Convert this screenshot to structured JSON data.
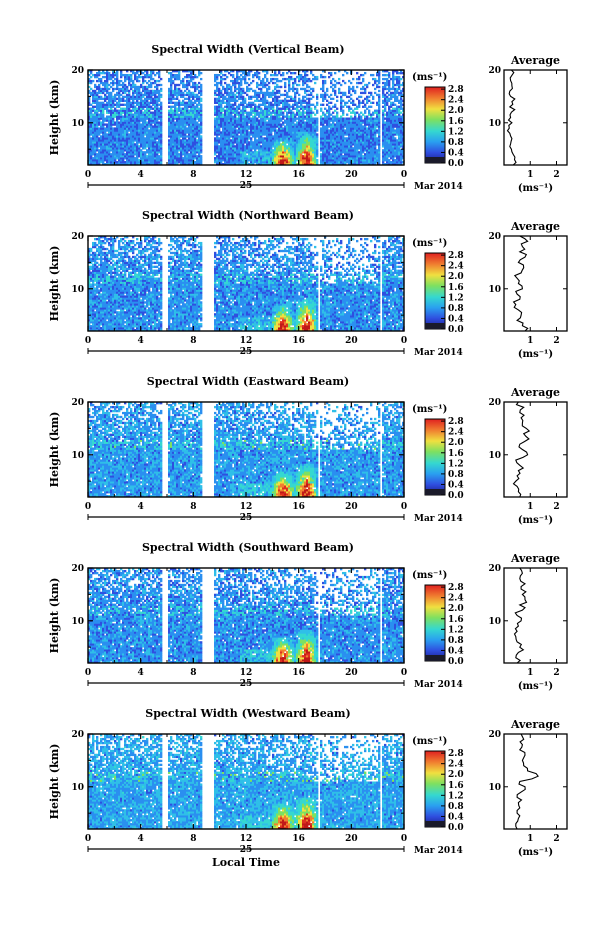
{
  "chart_data": [
    {
      "type": "heatmap",
      "title": "Spectral Width (Vertical Beam)",
      "ylabel": "Height (km)",
      "yticks": [
        "10",
        "20"
      ],
      "ylim": [
        2,
        20
      ],
      "xticks": [
        "0",
        "4",
        "8",
        "12",
        "16",
        "20",
        "0"
      ],
      "xlim": [
        0,
        24
      ],
      "day_label": "25",
      "month_label": "Mar 2014",
      "colorbar": {
        "unit": "(ms⁻¹)",
        "ticks": [
          "0.0",
          "0.4",
          "0.8",
          "1.2",
          "1.6",
          "2.0",
          "2.4",
          "2.8"
        ]
      },
      "gaps": [
        [
          5.6,
          6.0
        ],
        [
          8.6,
          9.6
        ],
        [
          17.4,
          17.6
        ],
        [
          22.2,
          22.4
        ]
      ],
      "peaks": [
        [
          14.8,
          7.2
        ],
        [
          16.6,
          8.5
        ]
      ],
      "profile": {
        "title": "Average",
        "xlabel": "(ms⁻¹)",
        "xticks": [
          "1",
          "2"
        ],
        "xlim": [
          0,
          2.4
        ],
        "ylim": [
          2,
          20
        ],
        "yticks": [
          "10",
          "20"
        ],
        "heights": [
          2,
          3,
          4,
          5,
          6,
          7,
          8,
          9,
          10,
          11,
          12,
          13,
          14,
          15,
          16,
          17,
          18,
          19,
          20
        ],
        "values": [
          0.35,
          0.4,
          0.35,
          0.28,
          0.25,
          0.3,
          0.22,
          0.2,
          0.3,
          0.25,
          0.28,
          0.22,
          0.3,
          0.25,
          0.22,
          0.3,
          0.25,
          0.3,
          0.28
        ]
      },
      "base_level": 0.55
    },
    {
      "type": "heatmap",
      "title": "Spectral Width (Northward Beam)",
      "ylabel": "Height (km)",
      "yticks": [
        "10",
        "20"
      ],
      "ylim": [
        2,
        20
      ],
      "xticks": [
        "0",
        "4",
        "8",
        "12",
        "16",
        "20",
        "0"
      ],
      "xlim": [
        0,
        24
      ],
      "day_label": "25",
      "month_label": "Mar 2014",
      "colorbar": {
        "unit": "(ms⁻¹)",
        "ticks": [
          "0.0",
          "0.4",
          "0.8",
          "1.2",
          "1.6",
          "2.0",
          "2.4",
          "2.8"
        ]
      },
      "gaps": [
        [
          5.6,
          6.0
        ],
        [
          8.6,
          9.6
        ],
        [
          17.4,
          17.6
        ],
        [
          22.2,
          22.4
        ]
      ],
      "peaks": [
        [
          14.8,
          7.2
        ],
        [
          16.6,
          8.5
        ]
      ],
      "profile": {
        "title": "Average",
        "xlabel": "(ms⁻¹)",
        "xticks": [
          "1",
          "2"
        ],
        "xlim": [
          0,
          2.4
        ],
        "ylim": [
          2,
          20
        ],
        "yticks": [
          "10",
          "20"
        ],
        "heights": [
          2,
          3,
          4,
          5,
          6,
          7,
          8,
          9,
          10,
          11,
          12,
          13,
          14,
          15,
          16,
          17,
          18,
          19,
          20
        ],
        "values": [
          0.8,
          0.7,
          0.5,
          0.65,
          0.55,
          0.45,
          0.6,
          0.5,
          0.7,
          0.55,
          0.5,
          0.65,
          0.75,
          0.55,
          0.8,
          0.6,
          0.7,
          0.9,
          0.6
        ]
      },
      "base_level": 0.6
    },
    {
      "type": "heatmap",
      "title": "Spectral Width (Eastward Beam)",
      "ylabel": "Height (km)",
      "yticks": [
        "10",
        "20"
      ],
      "ylim": [
        2,
        20
      ],
      "xticks": [
        "0",
        "4",
        "8",
        "12",
        "16",
        "20",
        "0"
      ],
      "xlim": [
        0,
        24
      ],
      "day_label": "25",
      "month_label": "Mar 2014",
      "colorbar": {
        "unit": "(ms⁻¹)",
        "ticks": [
          "0.0",
          "0.4",
          "0.8",
          "1.2",
          "1.6",
          "2.0",
          "2.4",
          "2.8"
        ]
      },
      "gaps": [
        [
          5.6,
          6.0
        ],
        [
          8.6,
          9.6
        ],
        [
          17.4,
          17.6
        ],
        [
          22.2,
          22.4
        ]
      ],
      "peaks": [
        [
          14.8,
          7.2
        ],
        [
          16.6,
          8.5
        ]
      ],
      "profile": {
        "title": "Average",
        "xlabel": "(ms⁻¹)",
        "xticks": [
          "1",
          "2"
        ],
        "xlim": [
          0,
          2.4
        ],
        "ylim": [
          2,
          20
        ],
        "yticks": [
          "10",
          "20"
        ],
        "heights": [
          2,
          3,
          4,
          5,
          6,
          7,
          8,
          9,
          10,
          11,
          12,
          13,
          14,
          15,
          16,
          17,
          18,
          19,
          20
        ],
        "values": [
          0.6,
          0.55,
          0.5,
          0.45,
          0.5,
          0.55,
          0.6,
          0.45,
          0.9,
          0.7,
          0.6,
          0.95,
          0.75,
          0.85,
          0.7,
          0.65,
          0.6,
          0.75,
          0.55
        ]
      },
      "base_level": 0.65
    },
    {
      "type": "heatmap",
      "title": "Spectral Width (Southward Beam)",
      "ylabel": "Height (km)",
      "yticks": [
        "10",
        "20"
      ],
      "ylim": [
        2,
        20
      ],
      "xticks": [
        "0",
        "4",
        "8",
        "12",
        "16",
        "20",
        "0"
      ],
      "xlim": [
        0,
        24
      ],
      "day_label": "25",
      "month_label": "Mar 2014",
      "colorbar": {
        "unit": "(ms⁻¹)",
        "ticks": [
          "0.0",
          "0.4",
          "0.8",
          "1.2",
          "1.6",
          "2.0",
          "2.4",
          "2.8"
        ]
      },
      "gaps": [
        [
          5.6,
          6.0
        ],
        [
          8.6,
          9.6
        ],
        [
          17.4,
          17.6
        ],
        [
          22.2,
          22.4
        ]
      ],
      "peaks": [
        [
          14.8,
          7.2
        ],
        [
          16.6,
          8.5
        ]
      ],
      "profile": {
        "title": "Average",
        "xlabel": "(ms⁻¹)",
        "xticks": [
          "1",
          "2"
        ],
        "xlim": [
          0,
          2.4
        ],
        "ylim": [
          2,
          20
        ],
        "yticks": [
          "10",
          "20"
        ],
        "heights": [
          2,
          3,
          4,
          5,
          6,
          7,
          8,
          9,
          10,
          11,
          12,
          13,
          14,
          15,
          16,
          17,
          18,
          19,
          20
        ],
        "values": [
          0.5,
          0.45,
          0.55,
          0.6,
          0.5,
          0.45,
          0.5,
          0.55,
          0.65,
          0.5,
          0.7,
          0.6,
          0.8,
          0.7,
          0.65,
          0.8,
          0.6,
          0.7,
          0.6
        ]
      },
      "base_level": 0.6
    },
    {
      "type": "heatmap",
      "title": "Spectral Width (Westward Beam)",
      "ylabel": "Height (km)",
      "yticks": [
        "10",
        "20"
      ],
      "ylim": [
        2,
        20
      ],
      "xticks": [
        "0",
        "4",
        "8",
        "12",
        "16",
        "20",
        "0"
      ],
      "xlim": [
        0,
        24
      ],
      "day_label": "25",
      "month_label": "Mar 2014",
      "xlabel": "Local Time",
      "colorbar": {
        "unit": "(ms⁻¹)",
        "ticks": [
          "0.0",
          "0.4",
          "0.8",
          "1.2",
          "1.6",
          "2.0",
          "2.4",
          "2.8"
        ]
      },
      "gaps": [
        [
          5.6,
          6.0
        ],
        [
          8.6,
          9.6
        ],
        [
          17.4,
          17.6
        ],
        [
          22.2,
          22.4
        ]
      ],
      "peaks": [
        [
          14.8,
          7.2
        ],
        [
          16.6,
          8.5
        ]
      ],
      "profile": {
        "title": "Average",
        "xlabel": "(ms⁻¹)",
        "xticks": [
          "1",
          "2"
        ],
        "xlim": [
          0,
          2.4
        ],
        "ylim": [
          2,
          20
        ],
        "yticks": [
          "10",
          "20"
        ],
        "heights": [
          2,
          3,
          4,
          5,
          6,
          7,
          8,
          9,
          10,
          11,
          12,
          13,
          14,
          15,
          16,
          17,
          18,
          19,
          20
        ],
        "values": [
          0.5,
          0.45,
          0.55,
          0.5,
          0.6,
          0.55,
          0.5,
          0.65,
          0.8,
          0.6,
          1.3,
          0.9,
          0.75,
          0.7,
          0.8,
          0.6,
          0.7,
          0.75,
          0.65
        ]
      },
      "base_level": 0.7
    }
  ]
}
